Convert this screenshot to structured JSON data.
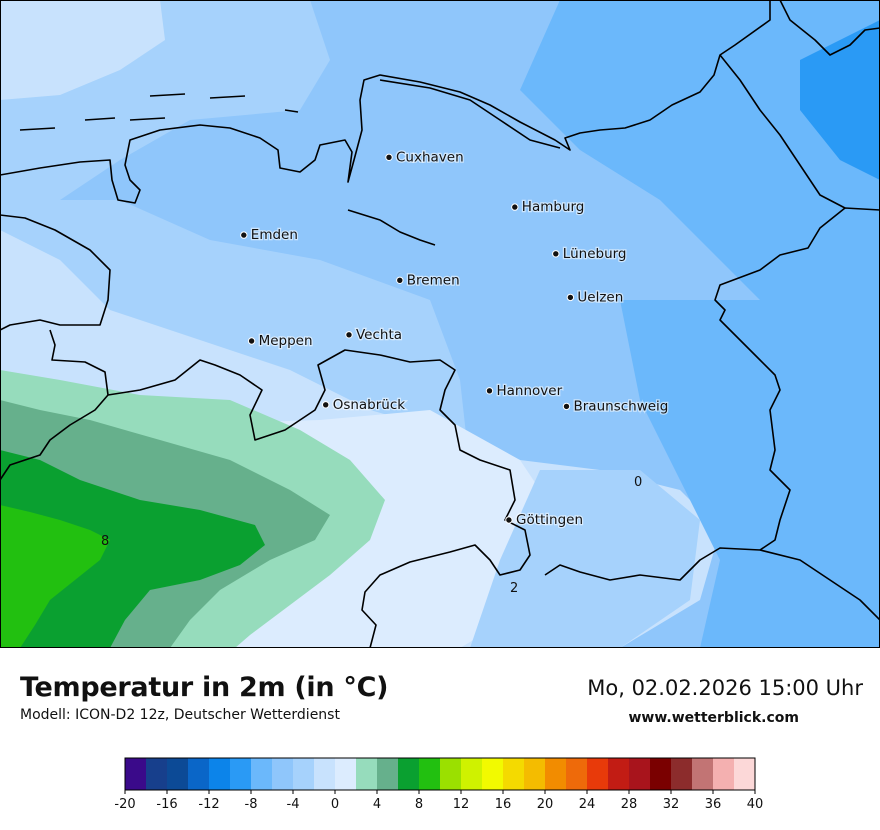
{
  "map": {
    "cities": [
      {
        "name": "Cuxhaven",
        "lon": 8.7,
        "lat": 53.87
      },
      {
        "name": "Hamburg",
        "lon": 9.99,
        "lat": 53.55
      },
      {
        "name": "Emden",
        "lon": 7.21,
        "lat": 53.37
      },
      {
        "name": "Lüneburg",
        "lon": 10.41,
        "lat": 53.25
      },
      {
        "name": "Bremen",
        "lon": 8.81,
        "lat": 53.08
      },
      {
        "name": "Uelzen",
        "lon": 10.56,
        "lat": 52.97
      },
      {
        "name": "Vechta",
        "lon": 8.29,
        "lat": 52.73
      },
      {
        "name": "Meppen",
        "lon": 7.29,
        "lat": 52.69
      },
      {
        "name": "Hannover",
        "lon": 9.73,
        "lat": 52.37
      },
      {
        "name": "Osnabrück",
        "lon": 8.05,
        "lat": 52.28
      },
      {
        "name": "Braunschweig",
        "lon": 10.52,
        "lat": 52.27
      },
      {
        "name": "Göttingen",
        "lon": 9.93,
        "lat": 51.54
      }
    ],
    "isoline_labels": [
      "0",
      "2",
      "8"
    ]
  },
  "footer": {
    "title": "Temperatur in 2m (in °C)",
    "model": "Modell: ICON-D2 12z, Deutscher Wetterdienst",
    "datetime": "Mo, 02.02.2026 15:00 Uhr",
    "website": "www.wetterblick.com"
  },
  "legend": {
    "ticks": [
      "-20",
      "-16",
      "-12",
      "-8",
      "-4",
      "0",
      "4",
      "8",
      "12",
      "16",
      "20",
      "24",
      "28",
      "32",
      "36",
      "40"
    ],
    "colors": [
      "#3a0a8a",
      "#173f8c",
      "#0c4a96",
      "#0a66c8",
      "#0c84ea",
      "#2a9af5",
      "#6bb8fb",
      "#8fc6fb",
      "#a6d2fc",
      "#c8e2fd",
      "#dcecfe",
      "#96dcbc",
      "#66b08c",
      "#0aa030",
      "#22c010",
      "#9be000",
      "#cff200",
      "#f2fa00",
      "#f4da00",
      "#f4bc00",
      "#f28c00",
      "#ee6a0a",
      "#e83a0a",
      "#c21c14",
      "#a8141c",
      "#7a0000",
      "#8c2c2c",
      "#c27474",
      "#f4b0b0",
      "#fcd8d8"
    ]
  }
}
